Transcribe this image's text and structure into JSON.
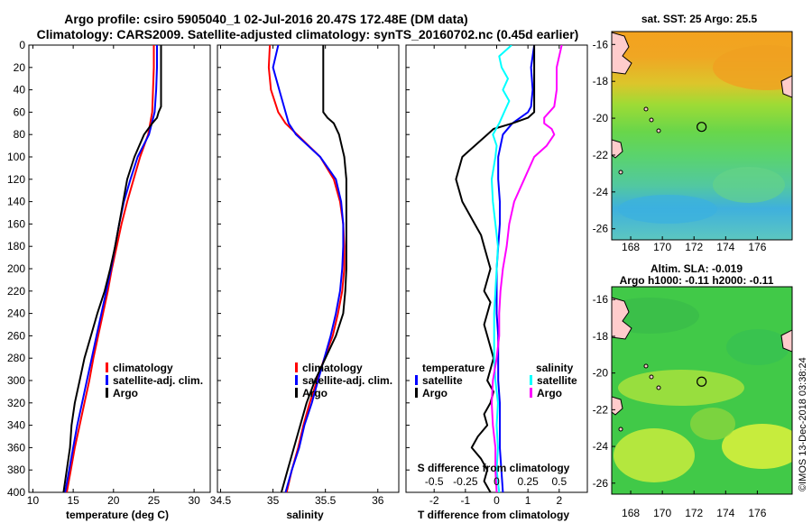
{
  "title_line1": "Argo profile: csiro 5905040_1 02-Jul-2016 20.47S 172.48E (DM data)",
  "title_line2": "Climatology: CARS2009. Satellite-adjusted climatology: synTS_20160702.nc (0.45d earlier)",
  "credit": "©IMOS 13-Dec-2018 03:38:24",
  "colors": {
    "climatology": "#ff0000",
    "satellite": "#0000ff",
    "argo": "#000000",
    "sal_satellite": "#00ffff",
    "sal_argo": "#ff00ff"
  },
  "chart_data": [
    {
      "type": "line",
      "id": "temperature",
      "xlabel": "temperature (deg C)",
      "ylabel": "",
      "xlim": [
        9.5,
        32
      ],
      "ylim": [
        400,
        0
      ],
      "xticks": [
        "10",
        "15",
        "20",
        "25",
        "30"
      ],
      "yticks": [
        "0",
        "20",
        "40",
        "60",
        "80",
        "100",
        "120",
        "140",
        "160",
        "180",
        "200",
        "220",
        "240",
        "260",
        "280",
        "300",
        "320",
        "340",
        "360",
        "380",
        "400"
      ],
      "legend": [
        "climatology",
        "satellite-adj. clim.",
        "Argo"
      ],
      "series": [
        {
          "name": "climatology",
          "color_key": "climatology",
          "depth": [
            0,
            20,
            40,
            60,
            80,
            100,
            120,
            140,
            160,
            180,
            200,
            220,
            240,
            260,
            280,
            300,
            320,
            340,
            360,
            380,
            400
          ],
          "values": [
            25.0,
            25.0,
            24.9,
            24.8,
            24.3,
            23.3,
            22.5,
            21.7,
            21.0,
            20.4,
            19.8,
            19.3,
            18.7,
            18.1,
            17.5,
            17.0,
            16.4,
            15.8,
            15.2,
            14.7,
            14.2
          ]
        },
        {
          "name": "satellite-adj. clim.",
          "color_key": "satellite",
          "depth": [
            0,
            20,
            40,
            60,
            80,
            100,
            120,
            140,
            160,
            180,
            200,
            220,
            240,
            260,
            280,
            300,
            320,
            340,
            360,
            380,
            400
          ],
          "values": [
            25.4,
            25.4,
            25.3,
            25.1,
            24.4,
            23.0,
            22.1,
            21.3,
            20.7,
            20.2,
            19.7,
            19.1,
            18.5,
            17.9,
            17.3,
            16.7,
            16.1,
            15.5,
            15.0,
            14.5,
            14.0
          ]
        },
        {
          "name": "Argo",
          "color_key": "argo",
          "depth": [
            0,
            20,
            40,
            55,
            60,
            65,
            70,
            80,
            100,
            120,
            140,
            160,
            180,
            200,
            220,
            240,
            260,
            280,
            300,
            320,
            340,
            360,
            380,
            400
          ],
          "values": [
            25.9,
            25.9,
            25.9,
            25.9,
            25.6,
            25.4,
            24.8,
            23.8,
            22.6,
            21.7,
            21.2,
            20.7,
            20.2,
            19.6,
            18.9,
            18.0,
            17.2,
            16.4,
            15.8,
            15.2,
            14.8,
            14.6,
            14.2,
            13.8
          ]
        }
      ]
    },
    {
      "type": "line",
      "id": "salinity",
      "xlabel": "salinity",
      "ylabel": "",
      "xlim": [
        34.47,
        36.2
      ],
      "ylim": [
        400,
        0
      ],
      "xticks": [
        "34.5",
        "35",
        "35.5",
        "36"
      ],
      "legend": [
        "climatology",
        "satellite-adj. clim.",
        "Argo"
      ],
      "series": [
        {
          "name": "climatology",
          "color_key": "climatology",
          "depth": [
            0,
            20,
            40,
            60,
            70,
            80,
            100,
            120,
            140,
            160,
            180,
            200,
            220,
            240,
            260,
            280,
            300,
            320,
            340,
            360,
            380,
            400
          ],
          "values": [
            34.97,
            34.96,
            34.98,
            35.05,
            35.12,
            35.23,
            35.45,
            35.58,
            35.64,
            35.67,
            35.68,
            35.68,
            35.66,
            35.62,
            35.57,
            35.49,
            35.42,
            35.35,
            35.29,
            35.24,
            35.18,
            35.13
          ]
        },
        {
          "name": "satellite-adj. clim.",
          "color_key": "satellite",
          "depth": [
            0,
            20,
            40,
            60,
            70,
            80,
            100,
            120,
            140,
            160,
            180,
            200,
            220,
            240,
            260,
            280,
            300,
            320,
            340,
            360,
            380,
            400
          ],
          "values": [
            35.05,
            35.0,
            35.06,
            35.12,
            35.15,
            35.22,
            35.45,
            35.6,
            35.65,
            35.67,
            35.67,
            35.66,
            35.64,
            35.6,
            35.55,
            35.49,
            35.43,
            35.37,
            35.3,
            35.25,
            35.18,
            35.12
          ]
        },
        {
          "name": "Argo",
          "color_key": "argo",
          "depth": [
            0,
            20,
            40,
            50,
            60,
            65,
            70,
            80,
            100,
            120,
            140,
            160,
            180,
            200,
            220,
            240,
            260,
            280,
            300,
            320,
            340,
            360,
            380,
            400
          ],
          "values": [
            35.48,
            35.48,
            35.48,
            35.48,
            35.48,
            35.52,
            35.58,
            35.63,
            35.68,
            35.7,
            35.7,
            35.7,
            35.7,
            35.7,
            35.69,
            35.67,
            35.6,
            35.5,
            35.4,
            35.32,
            35.26,
            35.2,
            35.14,
            35.08
          ]
        }
      ]
    },
    {
      "type": "line",
      "id": "difference",
      "xlabel": "T difference from climatology",
      "xlabel_top": "S difference from climatology",
      "xlim": [
        -2.9,
        2.9
      ],
      "ylim": [
        400,
        0
      ],
      "xticks": [
        "-2",
        "-1",
        "0",
        "1",
        "2"
      ],
      "xticks_s": [
        "-0.5",
        "-0.25",
        "0",
        "0.25",
        "0.5"
      ],
      "legend_temperature_title": "temperature",
      "legend_salinity_title": "salinity",
      "legend_temperature": [
        "satellite",
        "Argo"
      ],
      "legend_salinity": [
        "satellite",
        "Argo"
      ],
      "series": [
        {
          "name": "temperature satellite",
          "color_key": "satellite",
          "axis": "T",
          "depth": [
            0,
            20,
            40,
            55,
            60,
            70,
            80,
            100,
            120,
            140,
            160,
            180,
            200,
            220,
            240,
            260,
            280,
            300,
            320,
            340,
            360,
            380,
            400
          ],
          "values": [
            1.2,
            1.1,
            1.15,
            1.1,
            1.0,
            0.5,
            0.2,
            0.05,
            0.05,
            0.1,
            0.1,
            0.05,
            0.0,
            0.0,
            0.0,
            0.05,
            0.05,
            0.05,
            0.1,
            0.1,
            0.1,
            0.15,
            0.2
          ]
        },
        {
          "name": "temperature Argo",
          "color_key": "argo",
          "axis": "T",
          "depth": [
            0,
            20,
            40,
            55,
            60,
            65,
            70,
            75,
            80,
            85,
            90,
            95,
            100,
            110,
            120,
            130,
            140,
            150,
            160,
            170,
            180,
            190,
            200,
            210,
            220,
            230,
            240,
            250,
            260,
            270,
            280,
            290,
            300,
            310,
            320,
            330,
            340,
            350,
            360,
            370,
            380,
            390,
            400
          ],
          "values": [
            1.2,
            1.2,
            1.2,
            1.2,
            1.2,
            1.0,
            0.5,
            -0.1,
            -0.3,
            -0.5,
            -0.7,
            -0.9,
            -1.1,
            -1.2,
            -1.3,
            -1.2,
            -1.1,
            -0.9,
            -0.7,
            -0.5,
            -0.4,
            -0.3,
            -0.2,
            -0.3,
            -0.4,
            -0.2,
            -0.3,
            -0.4,
            -0.3,
            -0.2,
            -0.1,
            -0.2,
            -0.3,
            -0.1,
            -0.2,
            -0.4,
            -0.3,
            -0.6,
            -0.8,
            -0.5,
            -0.3,
            -0.4,
            -0.2
          ]
        },
        {
          "name": "salinity satellite",
          "color_key": "sal_satellite",
          "axis": "S",
          "depth": [
            0,
            10,
            20,
            30,
            40,
            50,
            60,
            70,
            80,
            90,
            100,
            120,
            140,
            160,
            180,
            200,
            220,
            240,
            260,
            280,
            300,
            320,
            340,
            360,
            380,
            400
          ],
          "values": [
            0.12,
            0.02,
            0.04,
            0.09,
            0.05,
            0.1,
            0.06,
            0.02,
            -0.03,
            0.0,
            -0.01,
            -0.04,
            -0.03,
            -0.01,
            0.01,
            0.0,
            -0.01,
            -0.02,
            -0.02,
            -0.02,
            -0.01,
            0.01,
            0.0,
            0.01,
            0.0,
            0.02
          ]
        },
        {
          "name": "salinity Argo",
          "color_key": "sal_argo",
          "axis": "S",
          "depth": [
            0,
            20,
            40,
            55,
            60,
            65,
            70,
            75,
            80,
            90,
            100,
            120,
            140,
            160,
            180,
            200,
            220,
            240,
            260,
            280,
            300,
            320,
            340,
            360,
            380,
            400
          ],
          "values": [
            0.52,
            0.48,
            0.48,
            0.46,
            0.42,
            0.38,
            0.38,
            0.44,
            0.46,
            0.4,
            0.3,
            0.22,
            0.14,
            0.1,
            0.08,
            0.05,
            0.03,
            0.02,
            0.02,
            0.0,
            -0.03,
            -0.04,
            -0.03,
            -0.01,
            -0.01,
            0.0
          ]
        }
      ]
    },
    {
      "type": "heatmap",
      "id": "sst_map",
      "title": "sat. SST: 25 Argo: 25.5",
      "xlim": [
        166.8,
        178.2
      ],
      "ylim": [
        -26.6,
        -15.3
      ],
      "xticks": [
        "168",
        "170",
        "172",
        "174",
        "176"
      ],
      "yticks": [
        "-16",
        "-18",
        "-20",
        "-22",
        "-24",
        "-26"
      ],
      "marker": {
        "lon": 172.48,
        "lat": -20.47
      }
    },
    {
      "type": "heatmap",
      "id": "sla_map",
      "title": "Altim. SLA: -0.019",
      "subtitle": "Argo h1000: -0.11 h2000: -0.11",
      "xlim": [
        166.8,
        178.2
      ],
      "ylim": [
        -26.6,
        -15.3
      ],
      "xticks": [
        "168",
        "170",
        "172",
        "174",
        "176"
      ],
      "yticks": [
        "-16",
        "-18",
        "-20",
        "-22",
        "-24",
        "-26"
      ],
      "marker": {
        "lon": 172.48,
        "lat": -20.47
      }
    }
  ]
}
